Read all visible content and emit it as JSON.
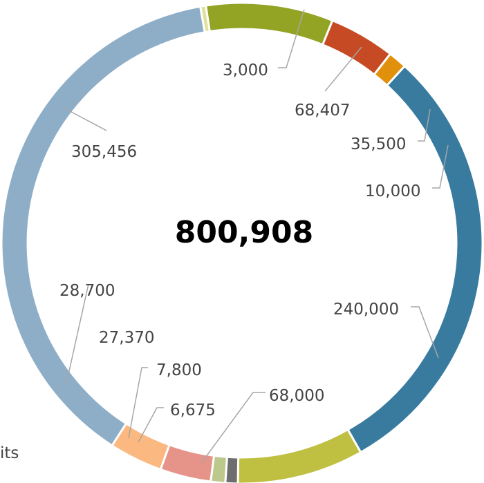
{
  "chart_data": {
    "type": "donut",
    "total_label": "800,908",
    "slices": [
      {
        "label": "3,000",
        "value": 3000,
        "color": "#e0e09a"
      },
      {
        "label": "68,407",
        "value": 68407,
        "color": "#93a323"
      },
      {
        "label": "35,500",
        "value": 35500,
        "color": "#c64a23"
      },
      {
        "label": "10,000",
        "value": 10000,
        "color": "#e0900a"
      },
      {
        "label": "240,000",
        "value": 240000,
        "color": "#387b9f"
      },
      {
        "label": "68,000",
        "value": 68000,
        "color": "#bfbf42"
      },
      {
        "label": "6,675",
        "value": 6675,
        "color": "#6e6e6e"
      },
      {
        "label": "7,800",
        "value": 7800,
        "color": "#bcc88c"
      },
      {
        "label": "27,370",
        "value": 27370,
        "color": "#e6948a"
      },
      {
        "label": "28,700",
        "value": 28700,
        "color": "#fbb880"
      },
      {
        "label": "305,456",
        "value": 305456,
        "color": "#8eaec8"
      }
    ],
    "legend_fragment": "its"
  }
}
